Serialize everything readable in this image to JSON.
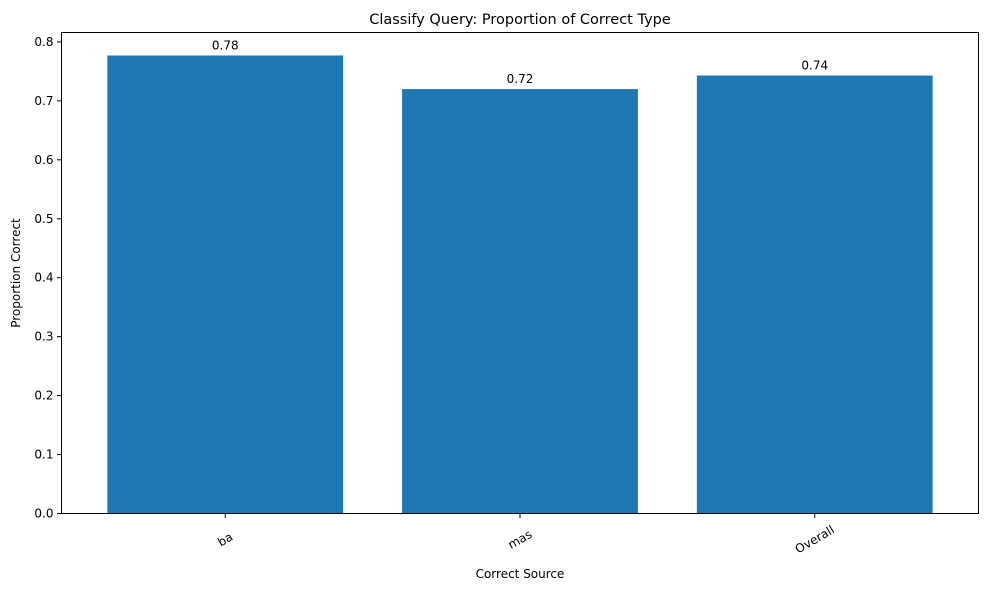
{
  "chart_data": {
    "type": "bar",
    "title": "Classify Query: Proportion of Correct Type",
    "xlabel": "Correct Source",
    "ylabel": "Proportion Correct",
    "categories": [
      "ba",
      "mas",
      "Overall"
    ],
    "values": [
      0.777,
      0.72,
      0.743
    ],
    "data_labels": [
      "0.78",
      "0.72",
      "0.74"
    ],
    "ylim": [
      0,
      0.816
    ],
    "yticks": [
      "0.0",
      "0.1",
      "0.2",
      "0.3",
      "0.4",
      "0.5",
      "0.6",
      "0.7",
      "0.8"
    ],
    "ytick_values": [
      0,
      0.1,
      0.2,
      0.3,
      0.4,
      0.5,
      0.6,
      0.7,
      0.8
    ],
    "grid": false,
    "legend": "none",
    "xtick_rotation_deg": 30
  },
  "colors": {
    "bar": "#1f77b4",
    "axis": "#000000",
    "background": "#ffffff"
  }
}
